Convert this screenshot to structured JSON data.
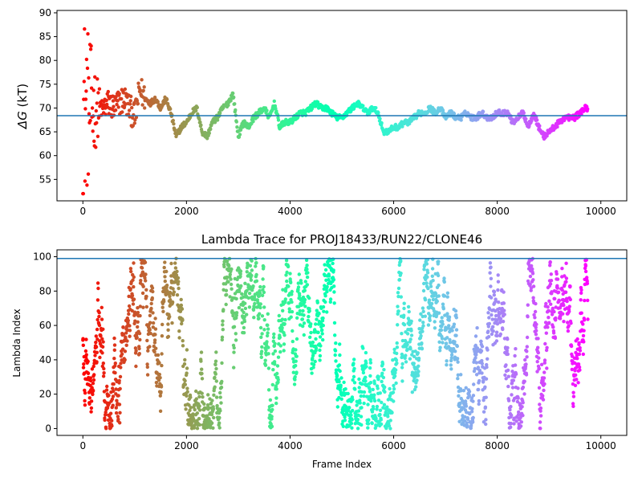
{
  "chart_data": [
    {
      "type": "scatter",
      "title": "",
      "xlabel": "",
      "ylabel": "ΔG (kT)",
      "ylabel_symbol": "ΔG",
      "ylabel_unit": "(kT)",
      "xlim": [
        -500,
        10500
      ],
      "ylim": [
        50.5,
        90.5
      ],
      "xticks": [
        0,
        2000,
        4000,
        6000,
        8000,
        10000
      ],
      "yticks": [
        55,
        60,
        65,
        70,
        75,
        80,
        85,
        90
      ],
      "colormap": "rainbow (reversed: early frames red, late frames violet)",
      "reference_line": {
        "y": 68.4,
        "color": "#1f77b4"
      },
      "grid": false,
      "series": [
        {
          "x": [
            0,
            50,
            100,
            150,
            200,
            250,
            300,
            400,
            500,
            600,
            700,
            800,
            900,
            1000,
            1100,
            1200,
            1300,
            1400,
            1500,
            1600,
            1700,
            1800,
            1900,
            2000,
            2100,
            2200,
            2300,
            2400,
            2500,
            2600,
            2700,
            2800,
            2900,
            3000,
            3100,
            3200,
            3300,
            3400,
            3500,
            3600,
            3700,
            3800,
            3900,
            4000,
            4100,
            4200,
            4300,
            4400,
            4500,
            4600,
            4700,
            4800,
            4900,
            5000,
            5100,
            5200,
            5300,
            5400,
            5500,
            5600,
            5700,
            5800,
            5900,
            6000,
            6100,
            6200,
            6300,
            6400,
            6500,
            6600,
            6700,
            6800,
            6900,
            7000,
            7100,
            7200,
            7300,
            7400,
            7500,
            7600,
            7700,
            7800,
            7900,
            8000,
            8100,
            8200,
            8300,
            8400,
            8500,
            8600,
            8700,
            8800,
            8900,
            9000,
            9100,
            9200,
            9300,
            9400,
            9500,
            9600,
            9700,
            9750
          ],
          "y": [
            70,
            72,
            71,
            73,
            70,
            72,
            71,
            70,
            71,
            70,
            71,
            72,
            70,
            68,
            74,
            72,
            71,
            72,
            70,
            72,
            69,
            64,
            66,
            67,
            69,
            70,
            65,
            64,
            67,
            68,
            70,
            71,
            73,
            64,
            67,
            66,
            68,
            69,
            70,
            68,
            71,
            66,
            67,
            67,
            68,
            69,
            69,
            70,
            71,
            70,
            70,
            69,
            68,
            68,
            69,
            70,
            71,
            70,
            69,
            70,
            69,
            65,
            65,
            66,
            66,
            67,
            67,
            68,
            69,
            69,
            70,
            69,
            70,
            68,
            69,
            68,
            68,
            69,
            68,
            68,
            69,
            68,
            68,
            69,
            69,
            69,
            67,
            68,
            69,
            66,
            69,
            66,
            64,
            65,
            66,
            67,
            68,
            68,
            68,
            69,
            70,
            70
          ]
        }
      ]
    },
    {
      "type": "scatter",
      "title": "Lambda Trace for PROJ18433/RUN22/CLONE46",
      "xlabel": "Frame Index",
      "ylabel": "Lambda Index",
      "xlim": [
        -500,
        10500
      ],
      "ylim": [
        -4,
        104
      ],
      "xticks": [
        0,
        2000,
        4000,
        6000,
        8000,
        10000
      ],
      "yticks": [
        0,
        20,
        40,
        60,
        80,
        100
      ],
      "colormap": "rainbow (reversed: early frames red, late frames violet)",
      "reference_line": {
        "y": 99,
        "color": "#1f77b4"
      },
      "grid": false,
      "series": [
        {
          "x_range": [
            0,
            9750
          ],
          "y_range": [
            0,
            99
          ],
          "note_values": "dense lambda-index samples spanning 0–99 across all frames"
        }
      ]
    }
  ]
}
